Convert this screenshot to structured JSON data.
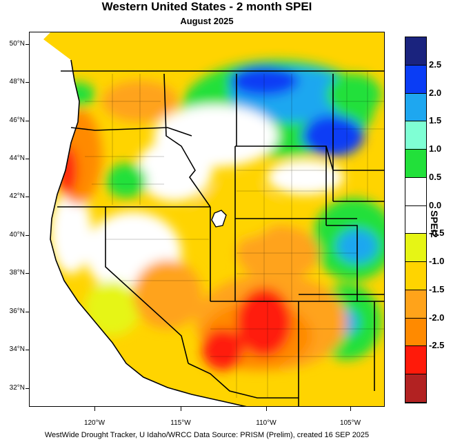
{
  "title": "Western United States - 2 month SPEI",
  "subtitle": "August 2025",
  "credit": "WestWide Drought Tracker, U Idaho/WRCC Data Source: PRISM (Prelim), created 16 SEP 2025",
  "legend": {
    "title": "SPEI2",
    "labels": [
      "2.5",
      "2.0",
      "1.5",
      "1.0",
      "0.5",
      "0.0",
      "-0.5",
      "-1.0",
      "-1.5",
      "-2.0",
      "-2.5"
    ],
    "colors": [
      "#1a237e",
      "#0a3df5",
      "#1ea7f0",
      "#7fffd4",
      "#22e03a",
      "#ffffff",
      "#ffffff",
      "#e6f515",
      "#ffd400",
      "#ffa31a",
      "#ff8a00",
      "#ff1a0a",
      "#b22222"
    ]
  },
  "lat_labels": [
    "50°N",
    "48°N",
    "46°N",
    "44°N",
    "42°N",
    "40°N",
    "38°N",
    "36°N",
    "34°N",
    "32°N"
  ],
  "lon_labels": [
    "120°W",
    "115°W",
    "110°W",
    "105°W"
  ]
}
